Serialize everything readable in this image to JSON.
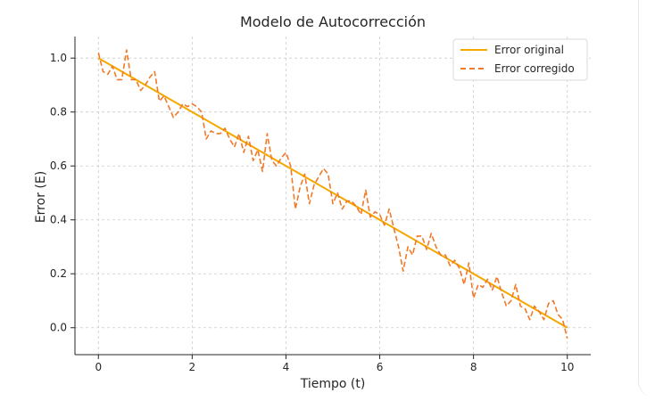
{
  "chart_data": {
    "type": "line",
    "title": "Modelo de Autocorrección",
    "xlabel": "Tiempo (t)",
    "ylabel": "Error (E)",
    "xlim": [
      -0.5,
      10.5
    ],
    "ylim": [
      -0.1,
      1.08
    ],
    "xticks": [
      0,
      2,
      4,
      6,
      8,
      10
    ],
    "yticks": [
      0.0,
      0.2,
      0.4,
      0.6,
      0.8,
      1.0
    ],
    "xtick_labels": [
      "0",
      "2",
      "4",
      "6",
      "8",
      "10"
    ],
    "ytick_labels": [
      "0.0",
      "0.2",
      "0.4",
      "0.6",
      "0.8",
      "1.0"
    ],
    "grid": true,
    "legend_position": "top-right",
    "series": [
      {
        "name": "Error original",
        "style": "solid",
        "color": "#f5a800",
        "x": [
          0,
          10
        ],
        "y": [
          1.0,
          0.0
        ]
      },
      {
        "name": "Error corregido",
        "style": "dashed",
        "color": "#f07a2a",
        "x": [
          0,
          0.1,
          0.2,
          0.3,
          0.4,
          0.5,
          0.6,
          0.7,
          0.8,
          0.9,
          1.0,
          1.1,
          1.2,
          1.3,
          1.4,
          1.5,
          1.6,
          1.7,
          1.8,
          1.9,
          2.0,
          2.1,
          2.2,
          2.3,
          2.4,
          2.5,
          2.6,
          2.7,
          2.8,
          2.9,
          3.0,
          3.1,
          3.2,
          3.3,
          3.4,
          3.5,
          3.6,
          3.7,
          3.8,
          3.9,
          4.0,
          4.1,
          4.2,
          4.3,
          4.4,
          4.5,
          4.6,
          4.7,
          4.8,
          4.9,
          5.0,
          5.1,
          5.2,
          5.3,
          5.4,
          5.5,
          5.6,
          5.7,
          5.8,
          5.9,
          6.0,
          6.1,
          6.2,
          6.3,
          6.4,
          6.5,
          6.6,
          6.7,
          6.8,
          6.9,
          7.0,
          7.1,
          7.2,
          7.3,
          7.4,
          7.5,
          7.6,
          7.7,
          7.8,
          7.9,
          8.0,
          8.1,
          8.2,
          8.3,
          8.4,
          8.5,
          8.6,
          8.7,
          8.8,
          8.9,
          9.0,
          9.1,
          9.2,
          9.3,
          9.4,
          9.5,
          9.6,
          9.7,
          9.8,
          9.9,
          10.0
        ],
        "y": [
          1.02,
          0.95,
          0.94,
          0.97,
          0.92,
          0.92,
          1.03,
          0.92,
          0.92,
          0.88,
          0.9,
          0.93,
          0.95,
          0.84,
          0.86,
          0.82,
          0.78,
          0.8,
          0.83,
          0.82,
          0.83,
          0.82,
          0.8,
          0.7,
          0.73,
          0.72,
          0.72,
          0.74,
          0.7,
          0.67,
          0.72,
          0.65,
          0.71,
          0.62,
          0.66,
          0.58,
          0.72,
          0.62,
          0.6,
          0.63,
          0.65,
          0.6,
          0.44,
          0.52,
          0.57,
          0.46,
          0.53,
          0.56,
          0.59,
          0.57,
          0.46,
          0.5,
          0.44,
          0.47,
          0.47,
          0.45,
          0.42,
          0.51,
          0.41,
          0.43,
          0.42,
          0.38,
          0.44,
          0.37,
          0.3,
          0.21,
          0.3,
          0.27,
          0.34,
          0.34,
          0.29,
          0.35,
          0.3,
          0.27,
          0.27,
          0.23,
          0.25,
          0.22,
          0.16,
          0.24,
          0.11,
          0.16,
          0.15,
          0.18,
          0.14,
          0.19,
          0.13,
          0.08,
          0.1,
          0.16,
          0.08,
          0.07,
          0.03,
          0.08,
          0.06,
          0.03,
          0.09,
          0.1,
          0.05,
          0.03,
          -0.04
        ]
      }
    ]
  }
}
